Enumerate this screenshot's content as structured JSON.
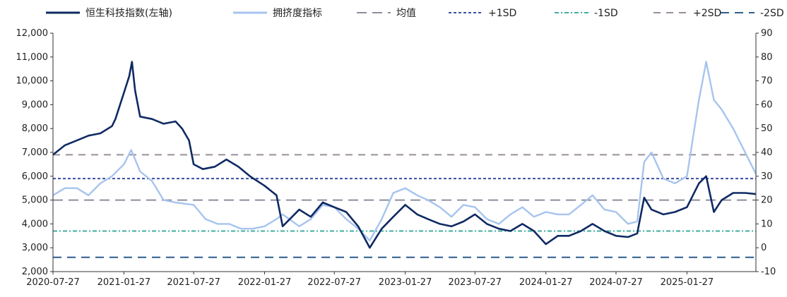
{
  "chart_data": {
    "type": "line",
    "title": "",
    "legend_position": "top",
    "grid": false,
    "x_labels": [
      "2020-07-27",
      "2021-01-27",
      "2021-07-27",
      "2022-01-27",
      "2022-07-27",
      "2023-01-27",
      "2023-07-27",
      "2024-01-27",
      "2024-07-27",
      "2025-01-27"
    ],
    "x_range": [
      "2020-07-27",
      "2025-07-25"
    ],
    "y_left": {
      "min": 2000,
      "max": 12000,
      "ticks": [
        2000,
        3000,
        4000,
        5000,
        6000,
        7000,
        8000,
        9000,
        10000,
        11000,
        12000
      ],
      "tick_labels": [
        "2,000",
        "3,000",
        "4,000",
        "5,000",
        "6,000",
        "7,000",
        "8,000",
        "9,000",
        "10,000",
        "11,000",
        "12,000"
      ]
    },
    "y_right": {
      "min": -10,
      "max": 90,
      "ticks": [
        -10,
        0,
        10,
        20,
        30,
        40,
        50,
        60,
        70,
        80,
        90
      ],
      "tick_labels": [
        "-10",
        "0",
        "10",
        "20",
        "30",
        "40",
        "50",
        "60",
        "70",
        "80",
        "90"
      ]
    },
    "series": [
      {
        "name": "恒生科技指数(左轴)",
        "axis": "left",
        "color": "#0f2a63",
        "points": [
          [
            "2020-07-27",
            6900
          ],
          [
            "2020-08-27",
            7300
          ],
          [
            "2020-09-27",
            7500
          ],
          [
            "2020-10-27",
            7700
          ],
          [
            "2020-11-27",
            7800
          ],
          [
            "2020-12-27",
            8100
          ],
          [
            "2021-01-05",
            8400
          ],
          [
            "2021-01-27",
            9500
          ],
          [
            "2021-02-10",
            10200
          ],
          [
            "2021-02-17",
            10800
          ],
          [
            "2021-02-25",
            9600
          ],
          [
            "2021-03-10",
            8500
          ],
          [
            "2021-04-10",
            8400
          ],
          [
            "2021-05-10",
            8200
          ],
          [
            "2021-06-10",
            8300
          ],
          [
            "2021-06-27",
            8000
          ],
          [
            "2021-07-15",
            7500
          ],
          [
            "2021-07-27",
            6500
          ],
          [
            "2021-08-20",
            6300
          ],
          [
            "2021-09-20",
            6400
          ],
          [
            "2021-10-20",
            6700
          ],
          [
            "2021-11-20",
            6400
          ],
          [
            "2021-12-20",
            6000
          ],
          [
            "2022-01-27",
            5600
          ],
          [
            "2022-02-27",
            5200
          ],
          [
            "2022-03-15",
            3900
          ],
          [
            "2022-04-27",
            4600
          ],
          [
            "2022-05-27",
            4300
          ],
          [
            "2022-06-27",
            4900
          ],
          [
            "2022-07-27",
            4700
          ],
          [
            "2022-08-27",
            4500
          ],
          [
            "2022-09-27",
            3900
          ],
          [
            "2022-10-27",
            3000
          ],
          [
            "2022-11-27",
            3800
          ],
          [
            "2022-12-27",
            4300
          ],
          [
            "2023-01-27",
            4800
          ],
          [
            "2023-02-27",
            4400
          ],
          [
            "2023-03-27",
            4200
          ],
          [
            "2023-04-27",
            4000
          ],
          [
            "2023-05-27",
            3900
          ],
          [
            "2023-06-27",
            4100
          ],
          [
            "2023-07-27",
            4400
          ],
          [
            "2023-08-27",
            4000
          ],
          [
            "2023-09-27",
            3800
          ],
          [
            "2023-10-27",
            3700
          ],
          [
            "2023-11-27",
            4000
          ],
          [
            "2023-12-27",
            3700
          ],
          [
            "2024-01-27",
            3150
          ],
          [
            "2024-02-27",
            3500
          ],
          [
            "2024-03-27",
            3500
          ],
          [
            "2024-04-27",
            3700
          ],
          [
            "2024-05-27",
            4000
          ],
          [
            "2024-06-27",
            3700
          ],
          [
            "2024-07-27",
            3500
          ],
          [
            "2024-08-27",
            3450
          ],
          [
            "2024-09-20",
            3600
          ],
          [
            "2024-10-08",
            5100
          ],
          [
            "2024-10-27",
            4600
          ],
          [
            "2024-11-27",
            4400
          ],
          [
            "2024-12-27",
            4500
          ],
          [
            "2025-01-27",
            4700
          ],
          [
            "2025-02-27",
            5700
          ],
          [
            "2025-03-18",
            6000
          ],
          [
            "2025-04-07",
            4500
          ],
          [
            "2025-04-27",
            5000
          ],
          [
            "2025-05-27",
            5300
          ],
          [
            "2025-06-27",
            5300
          ],
          [
            "2025-07-25",
            5250
          ]
        ]
      },
      {
        "name": "拥挤度指标",
        "axis": "right",
        "color": "#a7c4ee",
        "points": [
          [
            "2020-07-27",
            22
          ],
          [
            "2020-08-27",
            25
          ],
          [
            "2020-09-27",
            25
          ],
          [
            "2020-10-27",
            22
          ],
          [
            "2020-11-27",
            27
          ],
          [
            "2020-12-27",
            30
          ],
          [
            "2021-01-27",
            35
          ],
          [
            "2021-02-15",
            41
          ],
          [
            "2021-03-10",
            32
          ],
          [
            "2021-04-10",
            28
          ],
          [
            "2021-05-10",
            20
          ],
          [
            "2021-06-10",
            19
          ],
          [
            "2021-07-27",
            18
          ],
          [
            "2021-08-27",
            12
          ],
          [
            "2021-09-27",
            10
          ],
          [
            "2021-10-27",
            10
          ],
          [
            "2021-11-27",
            8
          ],
          [
            "2021-12-27",
            8
          ],
          [
            "2022-01-27",
            9
          ],
          [
            "2022-02-27",
            12
          ],
          [
            "2022-03-15",
            14
          ],
          [
            "2022-04-27",
            9
          ],
          [
            "2022-05-27",
            12
          ],
          [
            "2022-06-27",
            18
          ],
          [
            "2022-07-27",
            17
          ],
          [
            "2022-08-27",
            12
          ],
          [
            "2022-09-27",
            8
          ],
          [
            "2022-10-27",
            3
          ],
          [
            "2022-11-27",
            12
          ],
          [
            "2022-12-27",
            23
          ],
          [
            "2023-01-27",
            25
          ],
          [
            "2023-02-27",
            22
          ],
          [
            "2023-03-27",
            20
          ],
          [
            "2023-04-27",
            17
          ],
          [
            "2023-05-27",
            13
          ],
          [
            "2023-06-27",
            18
          ],
          [
            "2023-07-27",
            17
          ],
          [
            "2023-08-27",
            12
          ],
          [
            "2023-09-27",
            10
          ],
          [
            "2023-10-27",
            14
          ],
          [
            "2023-11-27",
            17
          ],
          [
            "2023-12-27",
            13
          ],
          [
            "2024-01-27",
            15
          ],
          [
            "2024-02-27",
            14
          ],
          [
            "2024-03-27",
            14
          ],
          [
            "2024-04-27",
            18
          ],
          [
            "2024-05-27",
            22
          ],
          [
            "2024-06-27",
            16
          ],
          [
            "2024-07-27",
            15
          ],
          [
            "2024-08-27",
            10
          ],
          [
            "2024-09-20",
            11
          ],
          [
            "2024-10-08",
            36
          ],
          [
            "2024-10-27",
            40
          ],
          [
            "2024-11-27",
            29
          ],
          [
            "2024-12-27",
            27
          ],
          [
            "2025-01-27",
            30
          ],
          [
            "2025-02-27",
            62
          ],
          [
            "2025-03-18",
            78
          ],
          [
            "2025-04-07",
            62
          ],
          [
            "2025-04-27",
            58
          ],
          [
            "2025-05-27",
            50
          ],
          [
            "2025-06-27",
            40
          ],
          [
            "2025-07-25",
            31
          ]
        ]
      }
    ],
    "reference_lines": [
      {
        "name": "均值",
        "axis": "right",
        "value": 20,
        "color": "#8d8d9e",
        "dash": "14 8"
      },
      {
        "name": "+1SD",
        "axis": "right",
        "value": 29,
        "color": "#3d4ea3",
        "dash": "4 3"
      },
      {
        "name": "-1SD",
        "axis": "right",
        "value": 7,
        "color": "#3fae9f",
        "dash": "6 3 2 3"
      },
      {
        "name": "+2SD",
        "axis": "right",
        "value": 39,
        "color": "#9a8f9a",
        "dash": "10 8"
      },
      {
        "name": "-2SD",
        "axis": "right",
        "value": -4,
        "color": "#2d5d8c",
        "dash": "12 8"
      }
    ]
  }
}
